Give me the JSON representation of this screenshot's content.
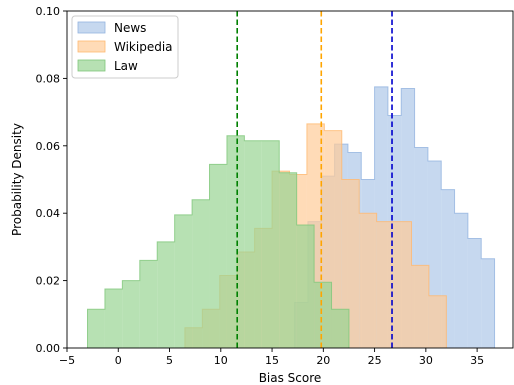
{
  "chart_data": {
    "type": "histogram",
    "xlabel": "Bias Score",
    "ylabel": "Probability Density",
    "xlim": [
      -5,
      38.5
    ],
    "ylim": [
      0,
      0.1
    ],
    "xticks": [
      -5,
      0,
      5,
      10,
      15,
      20,
      25,
      30,
      35
    ],
    "xtick_labels": [
      "−5",
      "0",
      "5",
      "10",
      "15",
      "20",
      "25",
      "30",
      "35"
    ],
    "yticks": [
      0,
      0.02,
      0.04,
      0.06,
      0.08,
      0.1
    ],
    "ytick_labels": [
      "0.00",
      "0.02",
      "0.04",
      "0.06",
      "0.08",
      "0.10"
    ],
    "legend_position": "top-left",
    "grid": false,
    "series": [
      {
        "name": "News",
        "fill": "#aec7e8",
        "edge": "#93b4e0",
        "bin_edges": [
          17.2,
          18.5,
          19.8,
          21.1,
          22.4,
          23.7,
          25.0,
          26.3,
          27.6,
          28.9,
          30.2,
          31.5,
          32.8,
          34.1,
          35.4,
          36.7
        ],
        "densities": [
          0.0135,
          0.0375,
          0.051,
          0.0605,
          0.058,
          0.05,
          0.0775,
          0.069,
          0.077,
          0.0595,
          0.0555,
          0.047,
          0.04,
          0.0325,
          0.0265
        ]
      },
      {
        "name": "Wikipedia",
        "fill": "#ffcc99",
        "edge": "#ffb970",
        "bin_edges": [
          6.5,
          8.2,
          9.9,
          11.6,
          13.3,
          15.0,
          16.7,
          18.4,
          20.1,
          21.8,
          23.5,
          25.2,
          26.9,
          28.6,
          30.3,
          32.0
        ],
        "densities": [
          0.006,
          0.0115,
          0.0215,
          0.0285,
          0.0355,
          0.0525,
          0.0515,
          0.0665,
          0.0645,
          0.05,
          0.04,
          0.0375,
          0.0375,
          0.0245,
          0.0155
        ]
      },
      {
        "name": "Law",
        "fill": "#98d493",
        "edge": "#7fc77a",
        "bin_edges": [
          -3.0,
          -1.3,
          0.4,
          2.1,
          3.8,
          5.5,
          7.2,
          8.9,
          10.6,
          12.3,
          14.0,
          15.7,
          17.4,
          19.1,
          20.8,
          22.5
        ],
        "densities": [
          0.0115,
          0.0175,
          0.02,
          0.026,
          0.0315,
          0.0395,
          0.044,
          0.0545,
          0.063,
          0.0615,
          0.0615,
          0.052,
          0.0365,
          0.0195,
          0.0115
        ]
      }
    ],
    "mean_lines": [
      {
        "series": "Law",
        "x": 11.6,
        "color": "#008000"
      },
      {
        "series": "Wikipedia",
        "x": 19.8,
        "color": "#ffa500"
      },
      {
        "series": "News",
        "x": 26.7,
        "color": "#0000cd"
      }
    ]
  }
}
